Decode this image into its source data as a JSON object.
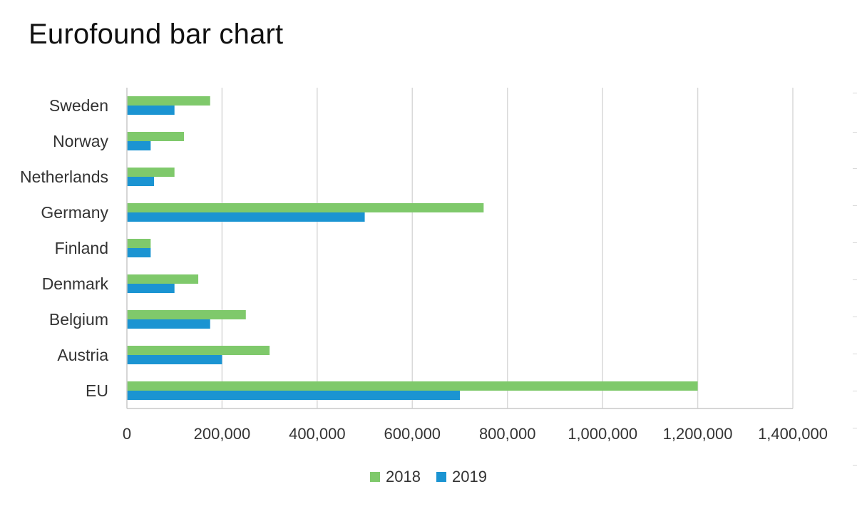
{
  "title": "Eurofound bar chart",
  "chart_data": {
    "type": "bar",
    "orientation": "horizontal",
    "title": "Eurofound bar chart",
    "categories": [
      "Sweden",
      "Norway",
      "Netherlands",
      "Germany",
      "Finland",
      "Denmark",
      "Belgium",
      "Austria",
      "EU"
    ],
    "series": [
      {
        "name": "2018",
        "color": "#7fc96b",
        "values": [
          175000,
          120000,
          100000,
          750000,
          50000,
          150000,
          250000,
          300000,
          1200000
        ]
      },
      {
        "name": "2019",
        "color": "#1b94d2",
        "values": [
          100000,
          50000,
          57000,
          500000,
          50000,
          100000,
          175000,
          200000,
          700000
        ]
      }
    ],
    "xlim": [
      0,
      1400000
    ],
    "xticks": [
      "0",
      "200,000",
      "400,000",
      "600,000",
      "800,000",
      "1,000,000",
      "1,200,000",
      "1,400,000"
    ],
    "xlabel": "",
    "ylabel": "",
    "grid": "vertical",
    "legend_position": "bottom"
  },
  "legend": {
    "items": [
      {
        "label": "2018",
        "color": "#7fc96b"
      },
      {
        "label": "2019",
        "color": "#1b94d2"
      }
    ]
  }
}
